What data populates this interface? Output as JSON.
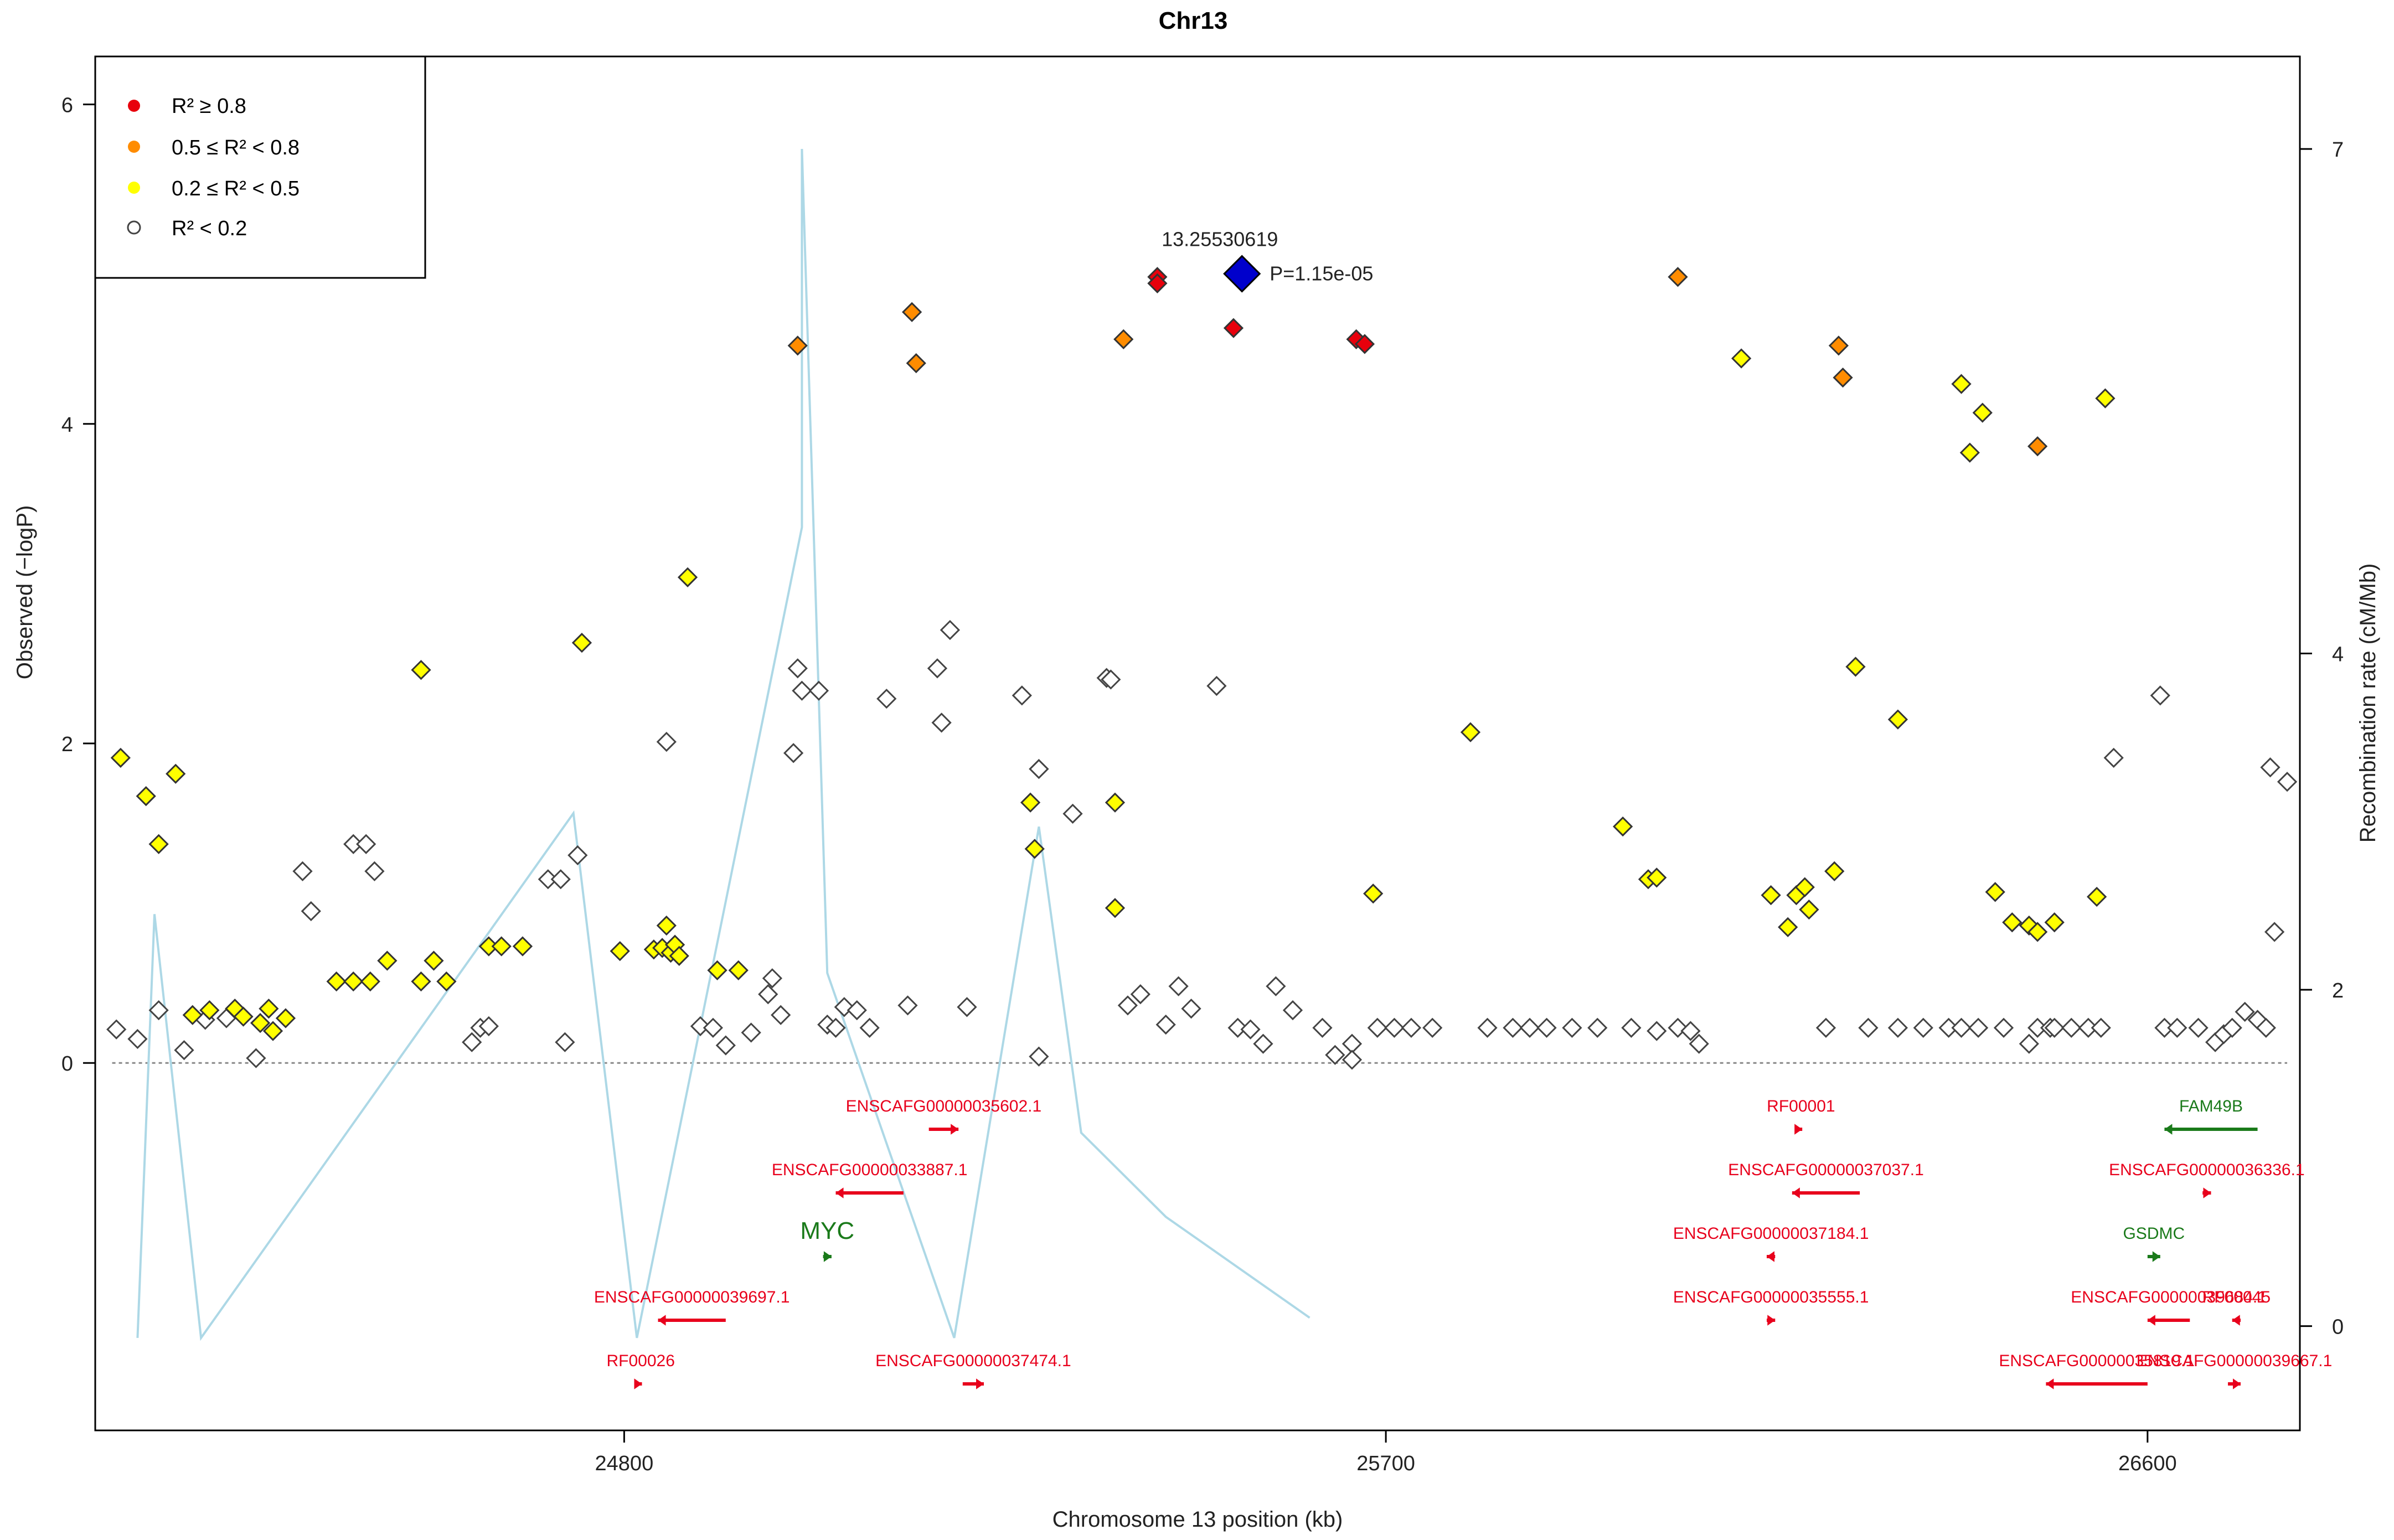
{
  "chart_data": {
    "type": "scatter",
    "title": "Chr13",
    "xlabel": "Chromosome 13 position (kb)",
    "ylabel_left": "Observed (−logP)",
    "ylabel_right": "Recombination rate (cM/Mb)",
    "xlim": [
      24175,
      26780
    ],
    "ylim_left": [
      -2.3,
      6.3
    ],
    "ylim_right": [
      -0.62,
      7.55
    ],
    "x_ticks": [
      24800,
      25700,
      26600
    ],
    "x_tick_labels": [
      "24800",
      "25700",
      "26600"
    ],
    "y_left_ticks": [
      0,
      2,
      4,
      6
    ],
    "y_left_tick_labels": [
      "0",
      "2",
      "4",
      "6"
    ],
    "y_right_ticks": [
      0,
      2,
      4,
      7
    ],
    "y_right_tick_labels": [
      "0",
      "2",
      "4",
      "7"
    ],
    "legend": [
      {
        "label": "R² ≥ 0.8",
        "color": "#e8000c",
        "kind": "filled"
      },
      {
        "label": "0.5 ≤ R² < 0.8",
        "color": "#ff8c00",
        "kind": "filled"
      },
      {
        "label": "0.2 ≤ R² < 0.5",
        "color": "#ffff00",
        "kind": "filled"
      },
      {
        "label": "R² < 0.2",
        "color": "#ffffff",
        "kind": "open"
      }
    ],
    "lead_snp": {
      "label": "13.25530619",
      "p_label": "P=1.15e-05",
      "x": 25530,
      "y": 4.94,
      "color": "#0000cc"
    },
    "series": [
      {
        "name": "r2_high",
        "color": "#e8000c",
        "points": [
          [
            25430,
            4.92
          ],
          [
            25430,
            4.88
          ],
          [
            25520,
            4.6
          ],
          [
            25665,
            4.53
          ],
          [
            25675,
            4.5
          ]
        ]
      },
      {
        "name": "r2_mid",
        "color": "#ff8c00",
        "points": [
          [
            25005,
            4.49
          ],
          [
            25140,
            4.7
          ],
          [
            25145,
            4.38
          ],
          [
            25390,
            4.53
          ],
          [
            26045,
            4.92
          ],
          [
            26235,
            4.49
          ],
          [
            26240,
            4.29
          ],
          [
            26470,
            3.86
          ]
        ]
      },
      {
        "name": "r2_low",
        "color": "#ffff00",
        "points": [
          [
            24205,
            1.91
          ],
          [
            24235,
            1.67
          ],
          [
            24250,
            1.37
          ],
          [
            24270,
            1.81
          ],
          [
            24290,
            0.3
          ],
          [
            24310,
            0.33
          ],
          [
            24340,
            0.34
          ],
          [
            24350,
            0.29
          ],
          [
            24370,
            0.25
          ],
          [
            24380,
            0.34
          ],
          [
            24400,
            0.28
          ],
          [
            24385,
            0.2
          ],
          [
            24460,
            0.51
          ],
          [
            24480,
            0.51
          ],
          [
            24500,
            0.51
          ],
          [
            24520,
            0.64
          ],
          [
            24560,
            2.46
          ],
          [
            24560,
            0.51
          ],
          [
            24575,
            0.64
          ],
          [
            24590,
            0.51
          ],
          [
            24640,
            0.73
          ],
          [
            24655,
            0.73
          ],
          [
            24680,
            0.73
          ],
          [
            24750,
            2.63
          ],
          [
            24795,
            0.7
          ],
          [
            24835,
            0.71
          ],
          [
            24850,
            0.86
          ],
          [
            24845,
            0.72
          ],
          [
            24855,
            0.69
          ],
          [
            24860,
            0.74
          ],
          [
            24865,
            0.67
          ],
          [
            24875,
            3.04
          ],
          [
            24910,
            0.58
          ],
          [
            24935,
            0.58
          ],
          [
            25280,
            1.63
          ],
          [
            25285,
            1.34
          ],
          [
            25380,
            1.63
          ],
          [
            25380,
            0.97
          ],
          [
            25685,
            1.06
          ],
          [
            25800,
            2.07
          ],
          [
            25980,
            1.48
          ],
          [
            26010,
            1.15
          ],
          [
            26020,
            1.16
          ],
          [
            26120,
            4.41
          ],
          [
            26155,
            1.05
          ],
          [
            26175,
            0.85
          ],
          [
            26185,
            1.05
          ],
          [
            26195,
            1.1
          ],
          [
            26200,
            0.96
          ],
          [
            26230,
            1.2
          ],
          [
            26255,
            2.48
          ],
          [
            26305,
            2.15
          ],
          [
            26380,
            4.25
          ],
          [
            26390,
            3.82
          ],
          [
            26405,
            4.07
          ],
          [
            26420,
            1.07
          ],
          [
            26440,
            0.88
          ],
          [
            26460,
            0.86
          ],
          [
            26470,
            0.82
          ],
          [
            26490,
            0.88
          ],
          [
            26540,
            1.04
          ],
          [
            26550,
            4.16
          ]
        ]
      },
      {
        "name": "r2_none",
        "color": "#ffffff",
        "points": [
          [
            24200,
            0.21
          ],
          [
            24225,
            0.15
          ],
          [
            24250,
            0.33
          ],
          [
            24280,
            0.08
          ],
          [
            24305,
            0.27
          ],
          [
            24330,
            0.28
          ],
          [
            24365,
            0.03
          ],
          [
            24420,
            1.2
          ],
          [
            24430,
            0.95
          ],
          [
            24480,
            1.37
          ],
          [
            24495,
            1.37
          ],
          [
            24505,
            1.2
          ],
          [
            24620,
            0.13
          ],
          [
            24630,
            0.22
          ],
          [
            24640,
            0.23
          ],
          [
            24710,
            1.15
          ],
          [
            24725,
            1.15
          ],
          [
            24745,
            1.3
          ],
          [
            24730,
            0.13
          ],
          [
            24850,
            2.01
          ],
          [
            24890,
            0.23
          ],
          [
            24905,
            0.22
          ],
          [
            24920,
            0.11
          ],
          [
            24950,
            0.19
          ],
          [
            24975,
            0.53
          ],
          [
            24970,
            0.43
          ],
          [
            24985,
            0.3
          ],
          [
            25000,
            1.94
          ],
          [
            25005,
            2.47
          ],
          [
            25010,
            2.33
          ],
          [
            25030,
            2.33
          ],
          [
            25040,
            0.24
          ],
          [
            25050,
            0.22
          ],
          [
            25060,
            0.35
          ],
          [
            25075,
            0.33
          ],
          [
            25090,
            0.22
          ],
          [
            25110,
            2.28
          ],
          [
            25135,
            0.36
          ],
          [
            25170,
            2.47
          ],
          [
            25175,
            2.13
          ],
          [
            25185,
            2.71
          ],
          [
            25270,
            2.3
          ],
          [
            25290,
            1.84
          ],
          [
            25330,
            1.56
          ],
          [
            25370,
            2.41
          ],
          [
            25375,
            2.4
          ],
          [
            25395,
            0.36
          ],
          [
            25410,
            0.43
          ],
          [
            25440,
            0.24
          ],
          [
            25455,
            0.48
          ],
          [
            25470,
            0.34
          ],
          [
            25500,
            2.36
          ],
          [
            25525,
            0.22
          ],
          [
            25540,
            0.21
          ],
          [
            25555,
            0.12
          ],
          [
            25570,
            0.48
          ],
          [
            25590,
            0.33
          ],
          [
            25625,
            0.22
          ],
          [
            25640,
            0.05
          ],
          [
            25660,
            0.12
          ],
          [
            25660,
            0.02
          ],
          [
            25690,
            0.22
          ],
          [
            25710,
            0.22
          ],
          [
            25730,
            0.22
          ],
          [
            25755,
            0.22
          ],
          [
            25820,
            0.22
          ],
          [
            25850,
            0.22
          ],
          [
            25870,
            0.22
          ],
          [
            25890,
            0.22
          ],
          [
            25920,
            0.22
          ],
          [
            25950,
            0.22
          ],
          [
            25990,
            0.22
          ],
          [
            26020,
            0.2
          ],
          [
            26045,
            0.22
          ],
          [
            26060,
            0.2
          ],
          [
            26070,
            0.12
          ],
          [
            26220,
            0.22
          ],
          [
            26270,
            0.22
          ],
          [
            26305,
            0.22
          ],
          [
            26335,
            0.22
          ],
          [
            26365,
            0.22
          ],
          [
            26380,
            0.22
          ],
          [
            26400,
            0.22
          ],
          [
            26430,
            0.22
          ],
          [
            26460,
            0.12
          ],
          [
            26470,
            0.22
          ],
          [
            26485,
            0.22
          ],
          [
            26490,
            0.22
          ],
          [
            26510,
            0.22
          ],
          [
            26530,
            0.22
          ],
          [
            26545,
            0.22
          ],
          [
            26560,
            1.91
          ],
          [
            26615,
            2.3
          ],
          [
            26620,
            0.22
          ],
          [
            26635,
            0.22
          ],
          [
            26660,
            0.22
          ],
          [
            26680,
            0.13
          ],
          [
            26690,
            0.18
          ],
          [
            26700,
            0.22
          ],
          [
            26715,
            0.32
          ],
          [
            26730,
            0.27
          ],
          [
            26740,
            0.22
          ],
          [
            26745,
            1.85
          ],
          [
            26750,
            0.82
          ],
          [
            26765,
            1.76
          ],
          [
            25205,
            0.35
          ],
          [
            25290,
            0.04
          ],
          [
            25290,
            1.84
          ]
        ]
      }
    ],
    "recombination_rate": {
      "color": "#add8e6",
      "points": [
        [
          24225,
          -0.07
        ],
        [
          24245,
          2.45
        ],
        [
          24300,
          -0.07
        ],
        [
          24740,
          3.05
        ],
        [
          24815,
          -0.07
        ],
        [
          25010,
          4.75
        ],
        [
          25010,
          7.0
        ],
        [
          25040,
          2.1
        ],
        [
          25190,
          -0.07
        ],
        [
          25290,
          2.97
        ],
        [
          25340,
          1.15
        ],
        [
          25440,
          0.65
        ],
        [
          25610,
          0.05
        ]
      ]
    },
    "genes": [
      {
        "name": "ENSCAFG00000035602.1",
        "color": "red",
        "start": 25160,
        "end": 25195,
        "strand": "+",
        "row": 0
      },
      {
        "name": "ENSCAFG00000033887.1",
        "color": "red",
        "start": 25050,
        "end": 25130,
        "strand": "-",
        "row": 1
      },
      {
        "name": "MYC",
        "color": "green",
        "start": 25035,
        "end": 25045,
        "strand": "+",
        "row": 2
      },
      {
        "name": "ENSCAFG00000039697.1",
        "color": "red",
        "start": 24840,
        "end": 24920,
        "strand": "-",
        "row": 3
      },
      {
        "name": "RF00026",
        "color": "red",
        "start": 24818,
        "end": 24821,
        "strand": "+",
        "row": 4
      },
      {
        "name": "ENSCAFG00000037474.1",
        "color": "red",
        "start": 25200,
        "end": 25225,
        "strand": "+",
        "row": 4
      },
      {
        "name": "RF00001",
        "color": "red",
        "start": 26189,
        "end": 26192,
        "strand": "+",
        "row": 0
      },
      {
        "name": "ENSCAFG00000037037.1",
        "color": "red",
        "start": 26180,
        "end": 26260,
        "strand": "-",
        "row": 1
      },
      {
        "name": "ENSCAFG00000037184.1",
        "color": "red",
        "start": 26150,
        "end": 26160,
        "strand": "-",
        "row": 2
      },
      {
        "name": "ENSCAFG00000035555.1",
        "color": "red",
        "start": 26150,
        "end": 26160,
        "strand": "+",
        "row": 3
      },
      {
        "name": "ENSCAFG00000035819.1",
        "color": "red",
        "start": 26480,
        "end": 26600,
        "strand": "-",
        "row": 4
      },
      {
        "name": "FAM49B",
        "color": "green",
        "start": 26620,
        "end": 26730,
        "strand": "-",
        "row": 0
      },
      {
        "name": "ENSCAFG00000036336.1",
        "color": "red",
        "start": 26665,
        "end": 26675,
        "strand": "+",
        "row": 1
      },
      {
        "name": "GSDMC",
        "color": "green",
        "start": 26600,
        "end": 26615,
        "strand": "+",
        "row": 2
      },
      {
        "name": "ENSCAFG00000039684.1",
        "color": "red",
        "start": 26600,
        "end": 26650,
        "strand": "-",
        "row": 3
      },
      {
        "name": "RF00045",
        "color": "red",
        "start": 26700,
        "end": 26710,
        "strand": "-",
        "row": 3
      },
      {
        "name": "ENSCAFG00000039667.1",
        "color": "red",
        "start": 26695,
        "end": 26710,
        "strand": "+",
        "row": 4
      }
    ]
  }
}
